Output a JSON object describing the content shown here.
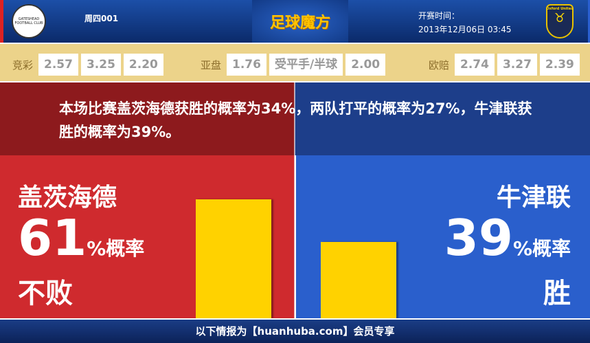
{
  "header": {
    "home_logo_text": "GATESHEAD FOOTBALL CLUB",
    "away_logo_text": "Oxford United",
    "match_code": "周四001",
    "brand": "足球魔方",
    "kickoff_label": "开赛时间：",
    "kickoff_time": "2013年12月06日 03:45"
  },
  "odds": {
    "jingcai": {
      "label": "竞彩",
      "values": [
        "2.57",
        "3.25",
        "2.20"
      ]
    },
    "asian": {
      "label": "亚盘",
      "home": "1.76",
      "handicap": "受平手/半球",
      "away": "2.00"
    },
    "euro": {
      "label": "欧赔",
      "values": [
        "2.74",
        "3.27",
        "2.39"
      ]
    }
  },
  "summary": "本场比赛盖茨海德获胜的概率为34%，两队打平的概率为27%，牛津联获胜的概率为39%。",
  "home": {
    "name": "盖茨海德",
    "percent": "61",
    "percent_suffix": "%概率",
    "outcome": "不败",
    "value": 61
  },
  "away": {
    "name": "牛津联",
    "percent": "39",
    "percent_suffix": "%概率",
    "outcome": "胜",
    "value": 39
  },
  "colors": {
    "home": "#cf2a2e",
    "away": "#2a5fcc",
    "bar": "#ffd200"
  },
  "footer": "以下情报为【huanhuba.com】会员专享"
}
